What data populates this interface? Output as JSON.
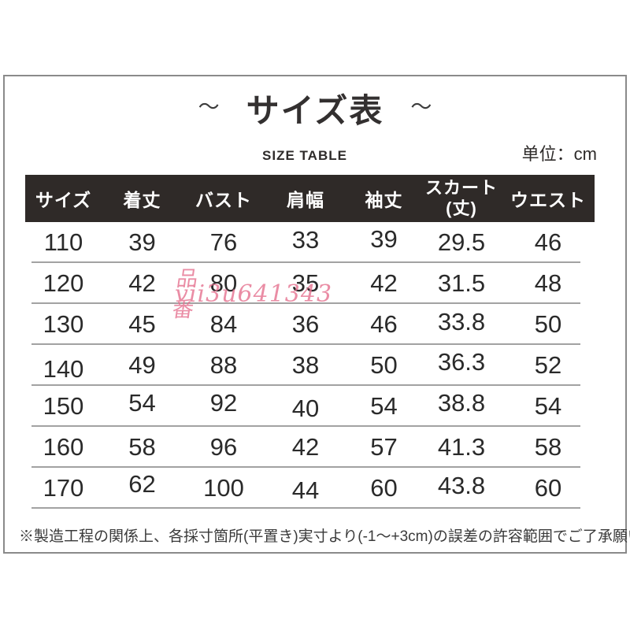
{
  "page": {
    "tilde": "～",
    "title": "サイズ表",
    "subtitle": "SIZE TABLE",
    "unit_label": "单位：cm"
  },
  "table": {
    "headers": [
      "サイズ",
      "着丈",
      "バスト",
      "肩幅",
      "袖丈",
      "スカート\n(丈)",
      "ウエスト"
    ],
    "rows": [
      [
        "110",
        "39",
        "76",
        "33",
        "39",
        "29.5",
        "46"
      ],
      [
        "120",
        "42",
        "80",
        "35",
        "42",
        "31.5",
        "48"
      ],
      [
        "130",
        "45",
        "84",
        "36",
        "46",
        "33.8",
        "50"
      ],
      [
        "140",
        "49",
        "88",
        "38",
        "50",
        "36.3",
        "52"
      ],
      [
        "150",
        "54",
        "92",
        "40",
        "54",
        "38.8",
        "54"
      ],
      [
        "160",
        "58",
        "96",
        "42",
        "57",
        "41.3",
        "58"
      ],
      [
        "170",
        "62",
        "100",
        "44",
        "60",
        "43.8",
        "60"
      ]
    ]
  },
  "watermark": {
    "line1": "品番",
    "line2": "vii3u641343",
    "color": "#e5718f"
  },
  "footer": {
    "note": "※製造工程の関係上、各採寸箇所(平置き)実寸より(-1～+3cm)の誤差の許容範囲でご了承願います。"
  },
  "colors": {
    "header_bg": "#2f2a28",
    "header_text": "#ffffff",
    "row_separator": "#a2a2a2",
    "panel_border": "#8a8a8a",
    "watermark_pink": "#e5718f"
  }
}
